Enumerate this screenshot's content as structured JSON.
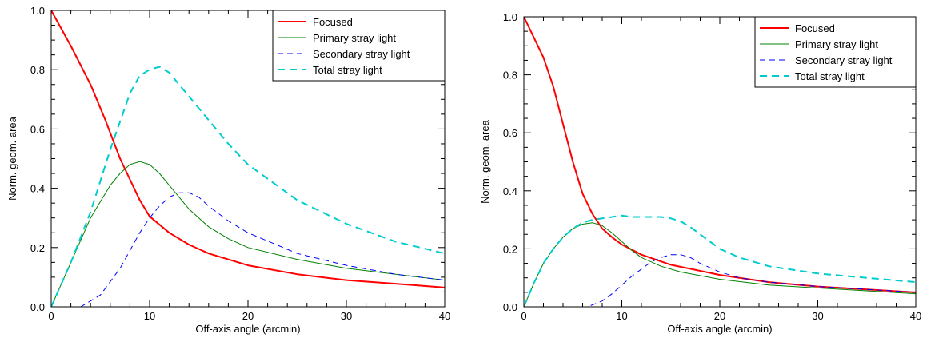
{
  "chart_data": [
    {
      "type": "line",
      "title": "",
      "xlabel": "Off-axis angle (arcmin)",
      "ylabel": "Norm. geom. area",
      "xlim": [
        0,
        40
      ],
      "ylim": [
        0,
        1.0
      ],
      "x_ticks": [
        0,
        10,
        20,
        30,
        40
      ],
      "x_tick_labels": [
        "0",
        "10",
        "20",
        "30",
        "40"
      ],
      "y_ticks": [
        0,
        0.2,
        0.4,
        0.6,
        0.8,
        1.0
      ],
      "y_tick_labels": [
        "0.0",
        "0.2",
        "0.4",
        "0.6",
        "0.8",
        "1.0"
      ],
      "grid": false,
      "legend_position": "top-right",
      "series": [
        {
          "name": "Focused",
          "color": "#ff0000",
          "dash": "solid",
          "width": 2,
          "x": [
            0,
            2,
            4,
            5.5,
            7,
            8,
            9,
            10,
            12,
            14,
            16,
            20,
            25,
            30,
            35,
            40
          ],
          "y": [
            1.0,
            0.88,
            0.75,
            0.63,
            0.5,
            0.43,
            0.36,
            0.305,
            0.25,
            0.21,
            0.18,
            0.14,
            0.11,
            0.09,
            0.078,
            0.065
          ]
        },
        {
          "name": "Primary stray light",
          "color": "#008000",
          "dash": "solid",
          "width": 1,
          "x": [
            0,
            2,
            4,
            6,
            7,
            8,
            9,
            10,
            11,
            12,
            13,
            14,
            16,
            18,
            20,
            25,
            30,
            35,
            40
          ],
          "y": [
            0.0,
            0.15,
            0.3,
            0.41,
            0.45,
            0.48,
            0.49,
            0.48,
            0.45,
            0.41,
            0.37,
            0.33,
            0.27,
            0.23,
            0.2,
            0.16,
            0.13,
            0.11,
            0.09
          ]
        },
        {
          "name": "Secondary stray light",
          "color": "#0000ff",
          "dash": "dashed",
          "width": 1,
          "x": [
            0,
            3,
            5,
            7,
            8,
            9,
            10,
            11,
            12,
            13,
            14,
            15,
            16,
            18,
            20,
            25,
            30,
            35,
            40
          ],
          "y": [
            0.0,
            0.0,
            0.04,
            0.13,
            0.19,
            0.25,
            0.3,
            0.34,
            0.37,
            0.385,
            0.385,
            0.37,
            0.34,
            0.29,
            0.25,
            0.18,
            0.14,
            0.11,
            0.09
          ]
        },
        {
          "name": "Total stray light",
          "color": "#00cccc",
          "dash": "dashed",
          "width": 2,
          "x": [
            0,
            2,
            4,
            6,
            8,
            9,
            10,
            11,
            12,
            13,
            14,
            16,
            18,
            20,
            25,
            30,
            35,
            40
          ],
          "y": [
            0.0,
            0.15,
            0.32,
            0.53,
            0.72,
            0.78,
            0.8,
            0.81,
            0.79,
            0.75,
            0.71,
            0.63,
            0.55,
            0.48,
            0.36,
            0.28,
            0.22,
            0.18
          ]
        }
      ]
    },
    {
      "type": "line",
      "title": "",
      "xlabel": "Off-axis angle (arcmin)",
      "ylabel": "Norm. geom. area",
      "xlim": [
        0,
        40
      ],
      "ylim": [
        0,
        1.0
      ],
      "x_ticks": [
        0,
        10,
        20,
        30,
        40
      ],
      "x_tick_labels": [
        "0",
        "10",
        "20",
        "30",
        "40"
      ],
      "y_ticks": [
        0,
        0.2,
        0.4,
        0.6,
        0.8,
        1.0
      ],
      "y_tick_labels": [
        "0.0",
        "0.2",
        "0.4",
        "0.6",
        "0.8",
        "1.0"
      ],
      "grid": false,
      "legend_position": "top-right",
      "series": [
        {
          "name": "Focused",
          "color": "#ff0000",
          "dash": "solid",
          "width": 2,
          "x": [
            0,
            1,
            2,
            3,
            4,
            5,
            6,
            7,
            8,
            9,
            10,
            12,
            15,
            20,
            25,
            30,
            35,
            40
          ],
          "y": [
            1.0,
            0.93,
            0.86,
            0.76,
            0.63,
            0.5,
            0.39,
            0.32,
            0.27,
            0.24,
            0.215,
            0.18,
            0.145,
            0.11,
            0.085,
            0.07,
            0.06,
            0.05
          ]
        },
        {
          "name": "Primary stray light",
          "color": "#008000",
          "dash": "solid",
          "width": 1,
          "x": [
            0,
            1,
            2,
            3,
            4,
            5,
            6,
            7,
            8,
            9,
            10,
            11,
            12,
            14,
            16,
            20,
            25,
            30,
            35,
            40
          ],
          "y": [
            0.0,
            0.08,
            0.15,
            0.2,
            0.24,
            0.27,
            0.285,
            0.29,
            0.28,
            0.255,
            0.225,
            0.195,
            0.17,
            0.14,
            0.12,
            0.095,
            0.075,
            0.065,
            0.055,
            0.045
          ]
        },
        {
          "name": "Secondary stray light",
          "color": "#0000ff",
          "dash": "dashed",
          "width": 1,
          "x": [
            0,
            6.5,
            8,
            9,
            10,
            11,
            12,
            13,
            14,
            15,
            16,
            17,
            18,
            20,
            22,
            25,
            30,
            35,
            40
          ],
          "y": [
            0.0,
            0.0,
            0.02,
            0.045,
            0.075,
            0.105,
            0.13,
            0.155,
            0.17,
            0.18,
            0.18,
            0.17,
            0.15,
            0.12,
            0.1,
            0.085,
            0.07,
            0.06,
            0.05
          ]
        },
        {
          "name": "Total stray light",
          "color": "#00cccc",
          "dash": "dashed",
          "width": 2,
          "x": [
            0,
            1,
            2,
            3,
            4,
            5,
            6,
            7,
            8,
            9,
            10,
            11,
            12,
            13,
            14,
            15,
            16,
            17,
            18,
            20,
            22,
            25,
            30,
            35,
            40
          ],
          "y": [
            0.0,
            0.08,
            0.15,
            0.2,
            0.24,
            0.27,
            0.29,
            0.3,
            0.305,
            0.31,
            0.315,
            0.31,
            0.31,
            0.31,
            0.31,
            0.305,
            0.295,
            0.275,
            0.25,
            0.2,
            0.17,
            0.14,
            0.115,
            0.1,
            0.085
          ]
        }
      ]
    }
  ]
}
